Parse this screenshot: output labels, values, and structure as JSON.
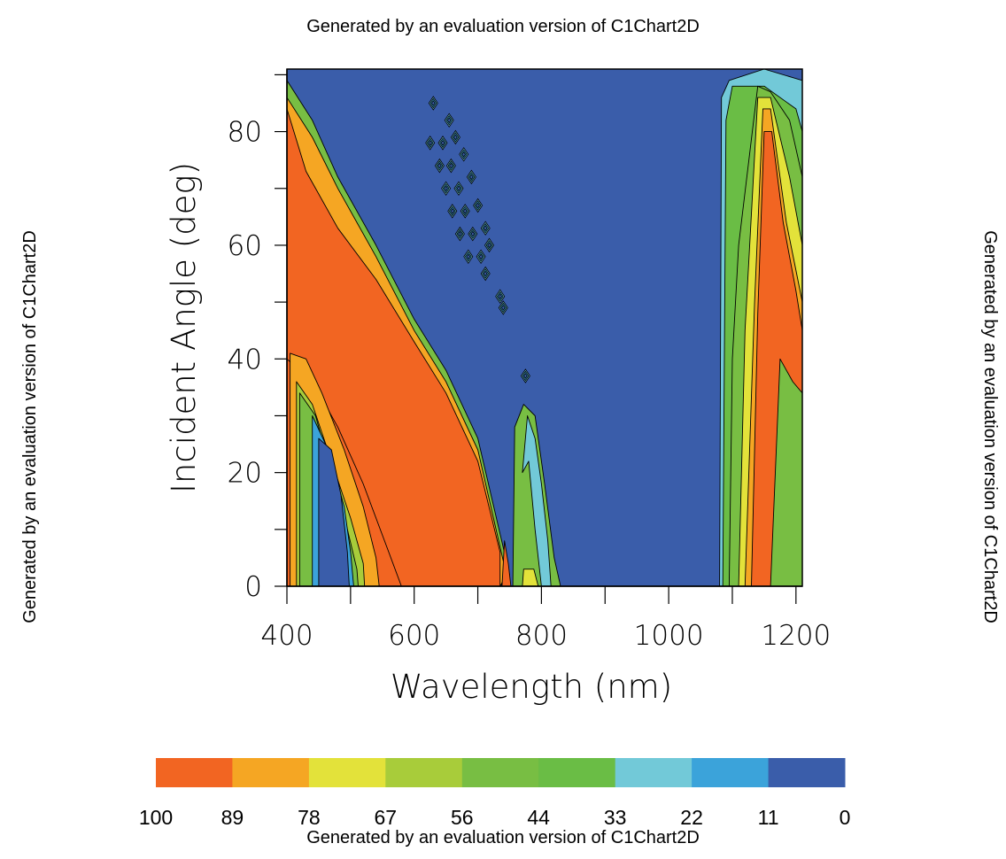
{
  "watermarks": {
    "top": "Generated by an evaluation version of C1Chart2D",
    "bottom": "Generated by an evaluation version of C1Chart2D",
    "left": "Generated by an evaluation version of C1Chart2D",
    "right": "Generated by an evaluation version of C1Chart2D"
  },
  "chart_data": {
    "type": "heatmap",
    "subtype": "filled-contour",
    "title": "",
    "xlabel": "Wavelength (nm)",
    "ylabel": "Incident Angle (deg)",
    "xlim": [
      400,
      1210
    ],
    "ylim": [
      0,
      91
    ],
    "x_ticks": [
      400,
      600,
      800,
      1000,
      1200
    ],
    "y_ticks": [
      0,
      20,
      40,
      60,
      80
    ],
    "grid": false,
    "legend_position": "bottom",
    "legend": {
      "levels": [
        "100",
        "89",
        "78",
        "67",
        "56",
        "44",
        "33",
        "22",
        "11",
        "0"
      ],
      "colors": [
        "#F26522",
        "#F5A623",
        "#E3E23A",
        "#A8CC3A",
        "#78BE43",
        "#6ABD45",
        "#72C9D8",
        "#3BA3DA",
        "#3A5DAA"
      ]
    },
    "background_color": "#3A5DAA",
    "regions": [
      {
        "name": "left-descending-band",
        "polygons": [
          {
            "level": 9,
            "color": "#78BE43",
            "points": [
              [
                400,
                89
              ],
              [
                440,
                82
              ],
              [
                480,
                72
              ],
              [
                540,
                60
              ],
              [
                600,
                47
              ],
              [
                650,
                38
              ],
              [
                700,
                26
              ],
              [
                750,
                2
              ],
              [
                735,
                0
              ],
              [
                400,
                0
              ]
            ]
          },
          {
            "level": 9.5,
            "color": "#F5A623",
            "points": [
              [
                400,
                86
              ],
              [
                440,
                79
              ],
              [
                480,
                70
              ],
              [
                540,
                58
              ],
              [
                600,
                45
              ],
              [
                650,
                36
              ],
              [
                700,
                24
              ],
              [
                745,
                2
              ],
              [
                735,
                0
              ],
              [
                400,
                0
              ]
            ]
          },
          {
            "level": 10,
            "color": "#F26522",
            "points": [
              [
                400,
                84
              ],
              [
                430,
                73
              ],
              [
                480,
                63
              ],
              [
                540,
                54
              ],
              [
                600,
                43
              ],
              [
                650,
                34
              ],
              [
                700,
                22
              ],
              [
                735,
                6
              ],
              [
                735,
                0
              ],
              [
                400,
                0
              ]
            ]
          }
        ]
      },
      {
        "name": "inner-left-pocket",
        "polygons": [
          {
            "level": 10,
            "color": "#F26522",
            "points": [
              [
                400,
                40
              ],
              [
                440,
                36
              ],
              [
                480,
                28
              ],
              [
                520,
                18
              ],
              [
                560,
                6
              ],
              [
                580,
                0
              ],
              [
                400,
                0
              ]
            ]
          },
          {
            "level": 9.5,
            "color": "#F5A623",
            "points": [
              [
                405,
                41
              ],
              [
                430,
                40
              ],
              [
                455,
                34
              ],
              [
                490,
                24
              ],
              [
                520,
                14
              ],
              [
                540,
                5
              ],
              [
                545,
                0
              ],
              [
                405,
                0
              ]
            ]
          },
          {
            "level": 8,
            "color": "#A8CC3A",
            "points": [
              [
                415,
                36
              ],
              [
                440,
                32
              ],
              [
                470,
                22
              ],
              [
                500,
                12
              ],
              [
                520,
                4
              ],
              [
                522,
                0
              ],
              [
                415,
                0
              ]
            ]
          },
          {
            "level": 7.5,
            "color": "#78BE43",
            "points": [
              [
                420,
                34
              ],
              [
                445,
                30
              ],
              [
                470,
                20
              ],
              [
                495,
                10
              ],
              [
                510,
                3
              ],
              [
                512,
                0
              ],
              [
                420,
                0
              ]
            ]
          },
          {
            "level": 6.5,
            "color": "#3BA3DA",
            "points": [
              [
                440,
                30
              ],
              [
                465,
                24
              ],
              [
                490,
                14
              ],
              [
                500,
                6
              ],
              [
                505,
                0
              ],
              [
                440,
                0
              ]
            ]
          },
          {
            "level": 6,
            "color": "#3A5DAA",
            "points": [
              [
                450,
                26
              ],
              [
                470,
                24
              ],
              [
                485,
                16
              ],
              [
                495,
                6
              ],
              [
                498,
                0
              ],
              [
                450,
                0
              ]
            ]
          }
        ]
      },
      {
        "name": "center-spike",
        "polygons": [
          {
            "level": 9,
            "color": "#78BE43",
            "points": [
              [
                755,
                0
              ],
              [
                758,
                28
              ],
              [
                772,
                32
              ],
              [
                790,
                30
              ],
              [
                805,
                18
              ],
              [
                820,
                5
              ],
              [
                830,
                0
              ]
            ]
          },
          {
            "level": 8.5,
            "color": "#72C9D8",
            "points": [
              [
                770,
                20
              ],
              [
                778,
                30
              ],
              [
                790,
                26
              ],
              [
                800,
                18
              ],
              [
                810,
                8
              ],
              [
                815,
                0
              ],
              [
                800,
                0
              ],
              [
                790,
                10
              ],
              [
                780,
                22
              ]
            ]
          },
          {
            "level": 10,
            "color": "#F26522",
            "points": [
              [
                738,
                0
              ],
              [
                742,
                8
              ],
              [
                748,
                4
              ],
              [
                752,
                0
              ]
            ]
          },
          {
            "level": 9.5,
            "color": "#E3E23A",
            "points": [
              [
                770,
                0
              ],
              [
                772,
                3
              ],
              [
                788,
                3
              ],
              [
                795,
                0
              ]
            ]
          }
        ]
      },
      {
        "name": "right-band",
        "polygons": [
          {
            "level": 7,
            "color": "#72C9D8",
            "points": [
              [
                1080,
                0
              ],
              [
                1083,
                86
              ],
              [
                1095,
                89
              ],
              [
                1150,
                91
              ],
              [
                1210,
                89
              ],
              [
                1210,
                0
              ]
            ]
          },
          {
            "level": 8,
            "color": "#6ABD45",
            "points": [
              [
                1085,
                0
              ],
              [
                1090,
                82
              ],
              [
                1100,
                88
              ],
              [
                1150,
                88
              ],
              [
                1200,
                84
              ],
              [
                1210,
                80
              ],
              [
                1210,
                0
              ]
            ]
          },
          {
            "level": 9,
            "color": "#78BE43",
            "points": [
              [
                1095,
                0
              ],
              [
                1100,
                40
              ],
              [
                1110,
                60
              ],
              [
                1140,
                88
              ],
              [
                1160,
                87
              ],
              [
                1190,
                82
              ],
              [
                1210,
                72
              ],
              [
                1210,
                0
              ]
            ]
          },
          {
            "level": 9.5,
            "color": "#E3E23A",
            "points": [
              [
                1110,
                0
              ],
              [
                1120,
                45
              ],
              [
                1140,
                86
              ],
              [
                1160,
                86
              ],
              [
                1190,
                72
              ],
              [
                1210,
                60
              ],
              [
                1210,
                0
              ]
            ]
          },
          {
            "level": 10,
            "color": "#F5A623",
            "points": [
              [
                1120,
                0
              ],
              [
                1135,
                50
              ],
              [
                1148,
                84
              ],
              [
                1160,
                84
              ],
              [
                1185,
                64
              ],
              [
                1210,
                50
              ],
              [
                1210,
                0
              ]
            ]
          },
          {
            "level": 11,
            "color": "#F26522",
            "points": [
              [
                1130,
                0
              ],
              [
                1140,
                48
              ],
              [
                1150,
                80
              ],
              [
                1162,
                80
              ],
              [
                1180,
                64
              ],
              [
                1200,
                52
              ],
              [
                1210,
                45
              ],
              [
                1210,
                0
              ]
            ]
          },
          {
            "level": 8.5,
            "color": "#78BE43",
            "points": [
              [
                1160,
                0
              ],
              [
                1175,
                40
              ],
              [
                1195,
                36
              ],
              [
                1210,
                34
              ],
              [
                1210,
                0
              ]
            ]
          }
        ]
      }
    ],
    "islands": [
      {
        "x": 630,
        "y": 85
      },
      {
        "x": 655,
        "y": 82
      },
      {
        "x": 625,
        "y": 78
      },
      {
        "x": 645,
        "y": 78
      },
      {
        "x": 665,
        "y": 79
      },
      {
        "x": 640,
        "y": 74
      },
      {
        "x": 658,
        "y": 74
      },
      {
        "x": 678,
        "y": 76
      },
      {
        "x": 650,
        "y": 70
      },
      {
        "x": 670,
        "y": 70
      },
      {
        "x": 690,
        "y": 72
      },
      {
        "x": 660,
        "y": 66
      },
      {
        "x": 680,
        "y": 66
      },
      {
        "x": 700,
        "y": 67
      },
      {
        "x": 672,
        "y": 62
      },
      {
        "x": 692,
        "y": 62
      },
      {
        "x": 712,
        "y": 63
      },
      {
        "x": 685,
        "y": 58
      },
      {
        "x": 705,
        "y": 58
      },
      {
        "x": 718,
        "y": 60
      },
      {
        "x": 712,
        "y": 55
      },
      {
        "x": 735,
        "y": 51
      },
      {
        "x": 740,
        "y": 49
      },
      {
        "x": 775,
        "y": 37
      }
    ]
  }
}
